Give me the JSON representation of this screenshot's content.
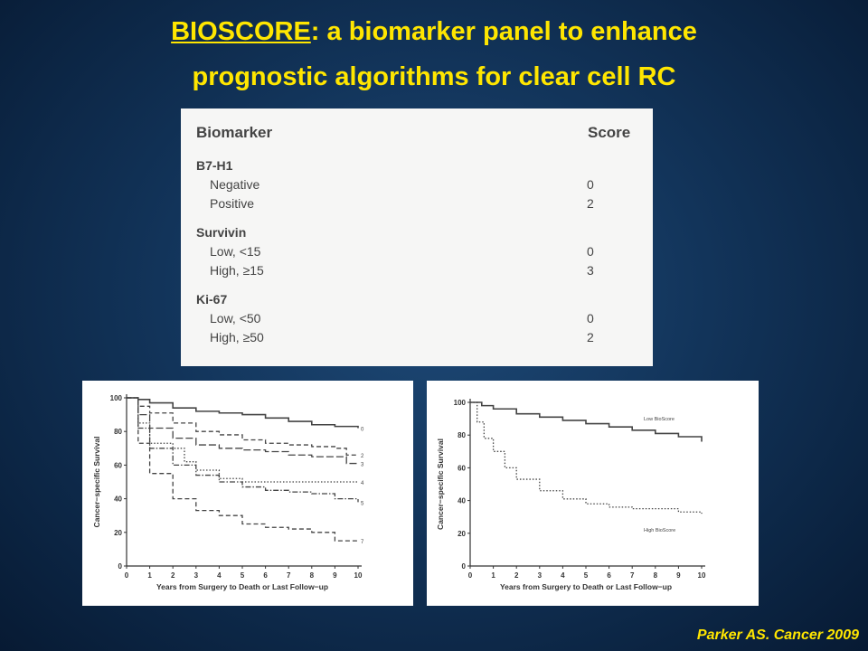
{
  "title": {
    "underlined": "BIOSCORE",
    "rest_line1": ": a biomarker panel to enhance",
    "line2": "prognostic algorithms for clear cell RC"
  },
  "table": {
    "header_biomarker": "Biomarker",
    "header_score": "Score",
    "groups": [
      {
        "name": "B7-H1",
        "rows": [
          {
            "label": "Negative",
            "score": "0"
          },
          {
            "label": "Positive",
            "score": "2"
          }
        ]
      },
      {
        "name": "Survivin",
        "rows": [
          {
            "label": "Low, <15",
            "score": "0"
          },
          {
            "label": "High, ≥15",
            "score": "3"
          }
        ]
      },
      {
        "name": "Ki-67",
        "rows": [
          {
            "label": "Low, <50",
            "score": "0"
          },
          {
            "label": "High, ≥50",
            "score": "2"
          }
        ]
      }
    ]
  },
  "chart_data": [
    {
      "type": "line",
      "xlabel": "Years from Surgery to Death or Last Follow−up",
      "ylabel": "Cancer−specific Survival",
      "xlim": [
        0,
        10
      ],
      "ylim": [
        0,
        100
      ],
      "xticks": [
        "0",
        "1",
        "2",
        "3",
        "4",
        "5",
        "6",
        "7",
        "8",
        "9",
        "10"
      ],
      "yticks": [
        "0",
        "20",
        "40",
        "60",
        "80",
        "100"
      ],
      "series": [
        {
          "name": "0",
          "style": "solid",
          "points": [
            [
              0,
              100
            ],
            [
              0.5,
              99
            ],
            [
              1,
              97
            ],
            [
              2,
              94
            ],
            [
              3,
              92
            ],
            [
              4,
              91
            ],
            [
              5,
              90
            ],
            [
              6,
              88
            ],
            [
              7,
              86
            ],
            [
              8,
              84
            ],
            [
              9,
              83
            ],
            [
              10,
              82
            ]
          ]
        },
        {
          "name": "2",
          "style": "dash",
          "points": [
            [
              0,
              100
            ],
            [
              0.5,
              95
            ],
            [
              1,
              91
            ],
            [
              2,
              85
            ],
            [
              3,
              80
            ],
            [
              4,
              78
            ],
            [
              5,
              75
            ],
            [
              6,
              73
            ],
            [
              7,
              72
            ],
            [
              8,
              71
            ],
            [
              9,
              70
            ],
            [
              9.5,
              66
            ],
            [
              10,
              66
            ]
          ]
        },
        {
          "name": "3",
          "style": "dash-long",
          "points": [
            [
              0,
              100
            ],
            [
              0.5,
              90
            ],
            [
              1,
              82
            ],
            [
              2,
              76
            ],
            [
              3,
              72
            ],
            [
              4,
              70
            ],
            [
              5,
              69
            ],
            [
              6,
              68
            ],
            [
              7,
              66
            ],
            [
              8,
              65
            ],
            [
              9,
              65
            ],
            [
              9.5,
              61
            ],
            [
              10,
              61
            ]
          ]
        },
        {
          "name": "4",
          "style": "dot",
          "points": [
            [
              0,
              100
            ],
            [
              0.5,
              85
            ],
            [
              1,
              73
            ],
            [
              2,
              70
            ],
            [
              2.5,
              62
            ],
            [
              3,
              57
            ],
            [
              4,
              52
            ],
            [
              5,
              50
            ],
            [
              6,
              50
            ],
            [
              7,
              50
            ],
            [
              8,
              50
            ],
            [
              9,
              50
            ],
            [
              10,
              50
            ]
          ]
        },
        {
          "name": "5",
          "style": "dashdot",
          "points": [
            [
              0,
              100
            ],
            [
              0.5,
              82
            ],
            [
              1,
              70
            ],
            [
              2,
              60
            ],
            [
              3,
              54
            ],
            [
              4,
              50
            ],
            [
              5,
              47
            ],
            [
              6,
              45
            ],
            [
              7,
              44
            ],
            [
              8,
              43
            ],
            [
              9,
              40
            ],
            [
              10,
              38
            ]
          ]
        },
        {
          "name": "7",
          "style": "dash",
          "points": [
            [
              0,
              100
            ],
            [
              0.5,
              73
            ],
            [
              1,
              55
            ],
            [
              2,
              40
            ],
            [
              3,
              33
            ],
            [
              4,
              30
            ],
            [
              5,
              25
            ],
            [
              6,
              23
            ],
            [
              7,
              22
            ],
            [
              8,
              20
            ],
            [
              9,
              15
            ],
            [
              10,
              15
            ]
          ]
        }
      ]
    },
    {
      "type": "line",
      "xlabel": "Years from Surgery to Death or Last Follow−up",
      "ylabel": "Cancer−specific Survival",
      "xlim": [
        0,
        10
      ],
      "ylim": [
        0,
        100
      ],
      "xticks": [
        "0",
        "1",
        "2",
        "3",
        "4",
        "5",
        "6",
        "7",
        "8",
        "9",
        "10"
      ],
      "yticks": [
        "0",
        "20",
        "40",
        "60",
        "80",
        "100"
      ],
      "series": [
        {
          "name": "Low BioScore",
          "style": "solid",
          "points": [
            [
              0,
              100
            ],
            [
              0.5,
              98
            ],
            [
              1,
              96
            ],
            [
              2,
              93
            ],
            [
              3,
              91
            ],
            [
              4,
              89
            ],
            [
              5,
              87
            ],
            [
              6,
              85
            ],
            [
              7,
              83
            ],
            [
              8,
              81
            ],
            [
              9,
              79
            ],
            [
              10,
              76
            ]
          ]
        },
        {
          "name": "High BioScore",
          "style": "dot",
          "points": [
            [
              0,
              100
            ],
            [
              0.3,
              88
            ],
            [
              0.6,
              78
            ],
            [
              1,
              70
            ],
            [
              1.5,
              60
            ],
            [
              2,
              53
            ],
            [
              3,
              46
            ],
            [
              4,
              41
            ],
            [
              5,
              38
            ],
            [
              6,
              36
            ],
            [
              7,
              35
            ],
            [
              8,
              35
            ],
            [
              9,
              33
            ],
            [
              10,
              32
            ]
          ]
        }
      ]
    }
  ],
  "citation": "Parker AS. Cancer 2009"
}
